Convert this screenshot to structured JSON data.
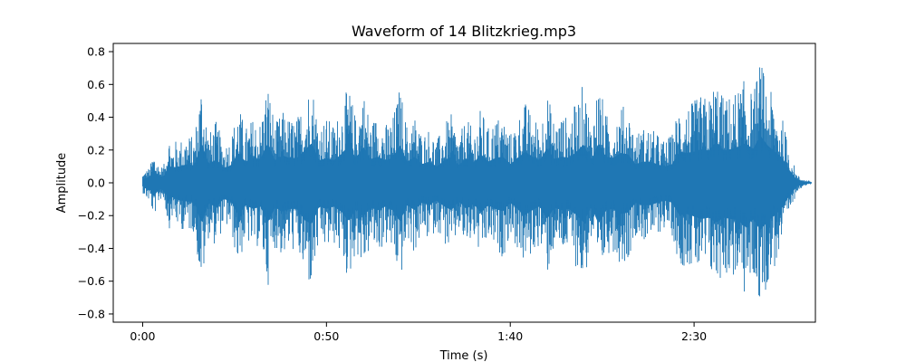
{
  "chart_data": {
    "type": "area",
    "title": "Waveform of 14 Blitzkrieg.mp3",
    "xlabel": "Time (s)",
    "ylabel": "Amplitude",
    "xlim": [
      -8,
      183
    ],
    "ylim": [
      -0.85,
      0.85
    ],
    "x_ticks": [
      {
        "value": 0,
        "label": "0:00"
      },
      {
        "value": 50,
        "label": "0:50"
      },
      {
        "value": 100,
        "label": "1:40"
      },
      {
        "value": 150,
        "label": "2:30"
      }
    ],
    "y_ticks": [
      {
        "value": -0.8,
        "label": "−0.8"
      },
      {
        "value": -0.6,
        "label": "−0.6"
      },
      {
        "value": -0.4,
        "label": "−0.4"
      },
      {
        "value": -0.2,
        "label": "−0.2"
      },
      {
        "value": 0.0,
        "label": "0.0"
      },
      {
        "value": 0.2,
        "label": "0.2"
      },
      {
        "value": 0.4,
        "label": "0.4"
      },
      {
        "value": 0.6,
        "label": "0.6"
      },
      {
        "value": 0.8,
        "label": "0.8"
      }
    ],
    "grid": false,
    "series": [
      {
        "color": "#1f77b4",
        "x": [
          0,
          1,
          2,
          3,
          4,
          5,
          6,
          7,
          8,
          9,
          10,
          12,
          14,
          16,
          18,
          20,
          22,
          24,
          26,
          28,
          30,
          32,
          34,
          36,
          38,
          40,
          42,
          44,
          46,
          48,
          50,
          52,
          54,
          56,
          58,
          60,
          62,
          64,
          66,
          68,
          70,
          72,
          74,
          76,
          78,
          80,
          82,
          84,
          86,
          88,
          90,
          92,
          94,
          96,
          98,
          100,
          102,
          104,
          106,
          108,
          110,
          112,
          114,
          116,
          118,
          120,
          122,
          124,
          126,
          128,
          130,
          132,
          134,
          136,
          138,
          140,
          142,
          144,
          146,
          148,
          150,
          152,
          154,
          156,
          158,
          160,
          162,
          164,
          166,
          168,
          170,
          172,
          174,
          176,
          178,
          180,
          182
        ],
        "upper": [
          0.06,
          0.08,
          0.1,
          0.2,
          0.13,
          0.1,
          0.12,
          0.32,
          0.22,
          0.26,
          0.26,
          0.3,
          0.28,
          0.65,
          0.3,
          0.38,
          0.24,
          0.28,
          0.48,
          0.34,
          0.4,
          0.38,
          0.64,
          0.36,
          0.44,
          0.4,
          0.4,
          0.52,
          0.64,
          0.36,
          0.4,
          0.36,
          0.46,
          0.6,
          0.4,
          0.58,
          0.38,
          0.42,
          0.36,
          0.4,
          0.6,
          0.34,
          0.42,
          0.3,
          0.34,
          0.26,
          0.36,
          0.42,
          0.28,
          0.4,
          0.32,
          0.46,
          0.34,
          0.4,
          0.42,
          0.3,
          0.4,
          0.5,
          0.42,
          0.36,
          0.56,
          0.38,
          0.42,
          0.4,
          0.5,
          0.62,
          0.36,
          0.64,
          0.42,
          0.4,
          0.48,
          0.46,
          0.3,
          0.34,
          0.34,
          0.3,
          0.26,
          0.3,
          0.5,
          0.48,
          0.5,
          0.54,
          0.52,
          0.66,
          0.52,
          0.54,
          0.58,
          0.64,
          0.54,
          0.76,
          0.6,
          0.5,
          0.4,
          0.2,
          0.05,
          0.02,
          0.01
        ],
        "lower": [
          -0.06,
          -0.1,
          -0.12,
          -0.22,
          -0.14,
          -0.1,
          -0.12,
          -0.3,
          -0.22,
          -0.26,
          -0.28,
          -0.3,
          -0.3,
          -0.66,
          -0.32,
          -0.4,
          -0.26,
          -0.3,
          -0.52,
          -0.36,
          -0.42,
          -0.38,
          -0.64,
          -0.4,
          -0.46,
          -0.42,
          -0.42,
          -0.6,
          -0.66,
          -0.38,
          -0.42,
          -0.38,
          -0.46,
          -0.62,
          -0.42,
          -0.54,
          -0.4,
          -0.44,
          -0.38,
          -0.44,
          -0.62,
          -0.36,
          -0.44,
          -0.32,
          -0.36,
          -0.28,
          -0.38,
          -0.44,
          -0.3,
          -0.42,
          -0.34,
          -0.48,
          -0.36,
          -0.42,
          -0.46,
          -0.32,
          -0.42,
          -0.52,
          -0.44,
          -0.38,
          -0.58,
          -0.4,
          -0.44,
          -0.42,
          -0.52,
          -0.64,
          -0.38,
          -0.66,
          -0.44,
          -0.42,
          -0.5,
          -0.48,
          -0.32,
          -0.36,
          -0.36,
          -0.32,
          -0.28,
          -0.32,
          -0.52,
          -0.5,
          -0.54,
          -0.58,
          -0.56,
          -0.64,
          -0.56,
          -0.58,
          -0.6,
          -0.72,
          -0.58,
          -0.76,
          -0.62,
          -0.52,
          -0.4,
          -0.2,
          -0.05,
          -0.02,
          -0.01
        ]
      }
    ]
  }
}
